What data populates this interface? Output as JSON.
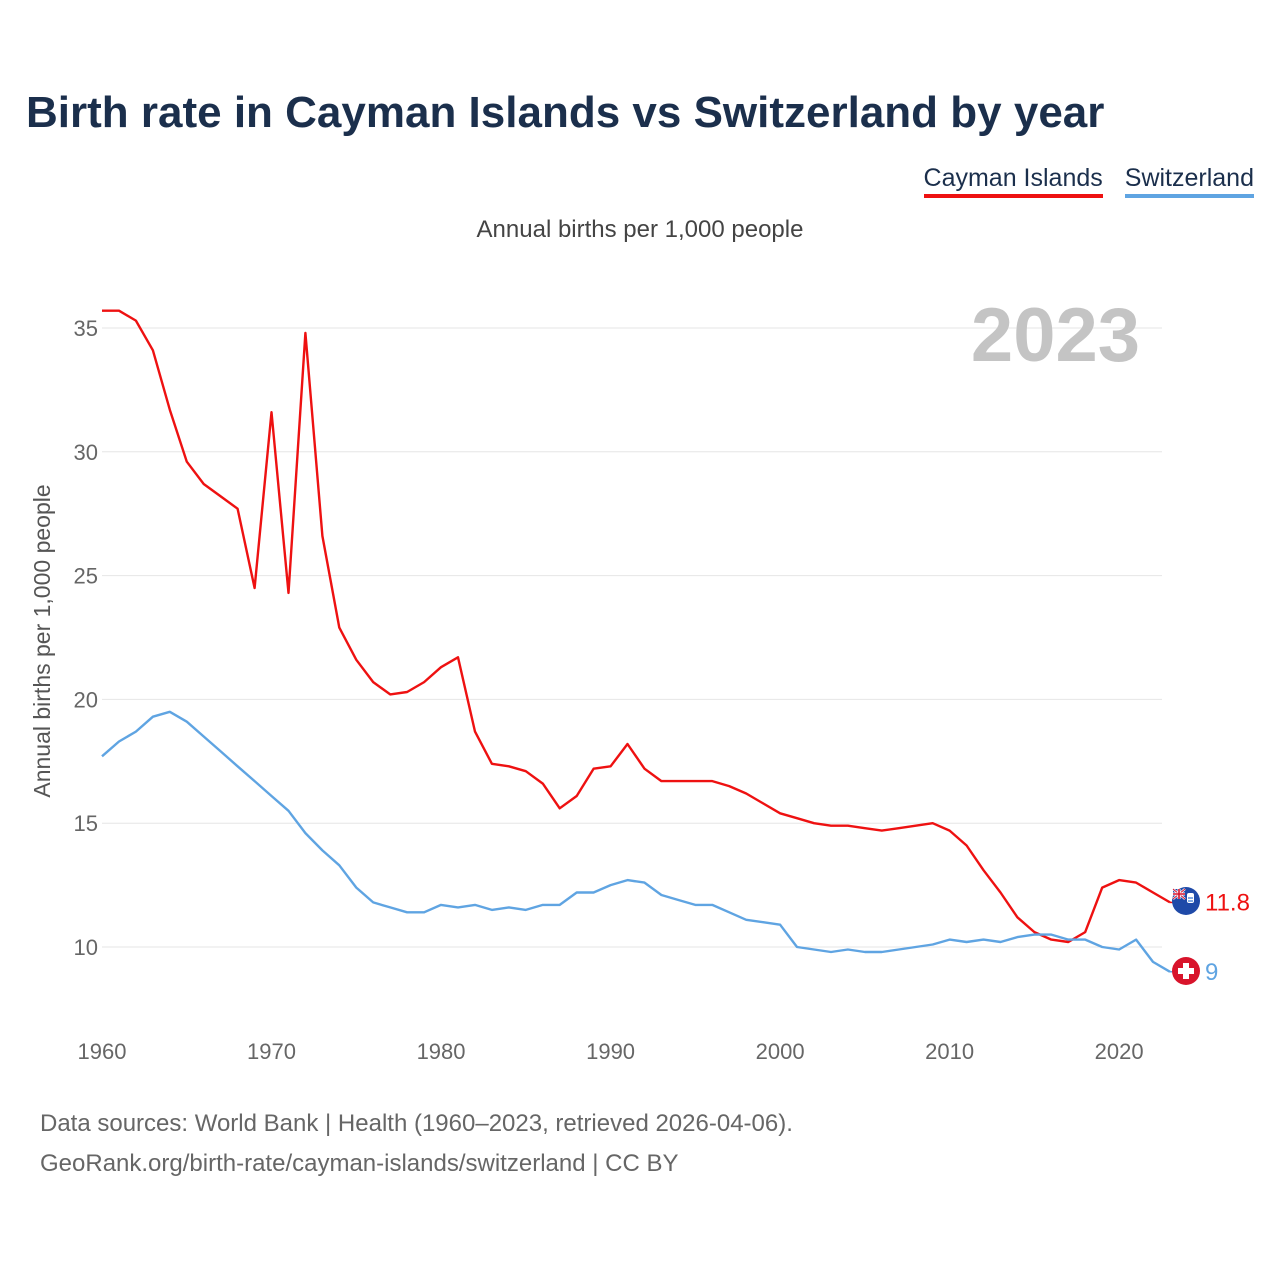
{
  "header": {
    "title": "Birth rate in Cayman Islands vs Switzerland by year",
    "subtitle": "Annual births per 1,000 people"
  },
  "legend": {
    "items": [
      {
        "label": "Cayman Islands",
        "color": "#ee1111"
      },
      {
        "label": "Switzerland",
        "color": "#5fa4e2"
      }
    ]
  },
  "footer": {
    "line1": "Data sources: World Bank | Health (1960–2023, retrieved 2026-04-06).",
    "line2": "GeoRank.org/birth-rate/cayman-islands/switzerland | CC BY"
  },
  "chart_data": {
    "type": "line",
    "title": "Birth rate in Cayman Islands vs Switzerland by year",
    "subtitle": "Annual births per 1,000 people",
    "xlabel": "",
    "ylabel": "Annual births per 1,000 people",
    "year_label": "2023",
    "xlim": [
      1960,
      2023
    ],
    "ylim": [
      7.5,
      36.5
    ],
    "grid": true,
    "x_ticks": [
      1960,
      1970,
      1980,
      1990,
      2000,
      2010,
      2020
    ],
    "y_ticks": [
      10,
      15,
      20,
      25,
      30,
      35
    ],
    "x": [
      1960,
      1961,
      1962,
      1963,
      1964,
      1965,
      1966,
      1967,
      1968,
      1969,
      1970,
      1971,
      1972,
      1973,
      1974,
      1975,
      1976,
      1977,
      1978,
      1979,
      1980,
      1981,
      1982,
      1983,
      1984,
      1985,
      1986,
      1987,
      1988,
      1989,
      1990,
      1991,
      1992,
      1993,
      1994,
      1995,
      1996,
      1997,
      1998,
      1999,
      2000,
      2001,
      2002,
      2003,
      2004,
      2005,
      2006,
      2007,
      2008,
      2009,
      2010,
      2011,
      2012,
      2013,
      2014,
      2015,
      2016,
      2017,
      2018,
      2019,
      2020,
      2021,
      2022,
      2023
    ],
    "series": [
      {
        "name": "Cayman Islands",
        "color": "#ee1111",
        "end_label": "11.8",
        "values": [
          35.7,
          35.7,
          35.3,
          34.1,
          31.7,
          29.6,
          28.7,
          28.2,
          27.7,
          24.5,
          31.6,
          24.3,
          34.8,
          26.6,
          22.9,
          21.6,
          20.7,
          20.2,
          20.3,
          20.7,
          21.3,
          21.7,
          18.7,
          17.4,
          17.3,
          17.1,
          16.6,
          15.6,
          16.1,
          17.2,
          17.3,
          18.2,
          17.2,
          16.7,
          16.7,
          16.7,
          16.7,
          16.5,
          16.2,
          15.8,
          15.4,
          15.2,
          15.0,
          14.9,
          14.9,
          14.8,
          14.7,
          14.8,
          14.9,
          15.0,
          14.7,
          14.1,
          13.1,
          12.2,
          11.2,
          10.6,
          10.3,
          10.2,
          10.6,
          12.4,
          12.7,
          12.6,
          12.2,
          11.8
        ]
      },
      {
        "name": "Switzerland",
        "color": "#5fa4e2",
        "end_label": "9",
        "values": [
          17.7,
          18.3,
          18.7,
          19.3,
          19.5,
          19.1,
          18.5,
          17.9,
          17.3,
          16.7,
          16.1,
          15.5,
          14.6,
          13.9,
          13.3,
          12.4,
          11.8,
          11.6,
          11.4,
          11.4,
          11.7,
          11.6,
          11.7,
          11.5,
          11.6,
          11.5,
          11.7,
          11.7,
          12.2,
          12.2,
          12.5,
          12.7,
          12.6,
          12.1,
          11.9,
          11.7,
          11.7,
          11.4,
          11.1,
          11.0,
          10.9,
          10.0,
          9.9,
          9.8,
          9.9,
          9.8,
          9.8,
          9.9,
          10.0,
          10.1,
          10.3,
          10.2,
          10.3,
          10.2,
          10.4,
          10.5,
          10.5,
          10.3,
          10.3,
          10.0,
          9.9,
          10.3,
          9.4,
          9.0
        ]
      }
    ]
  }
}
